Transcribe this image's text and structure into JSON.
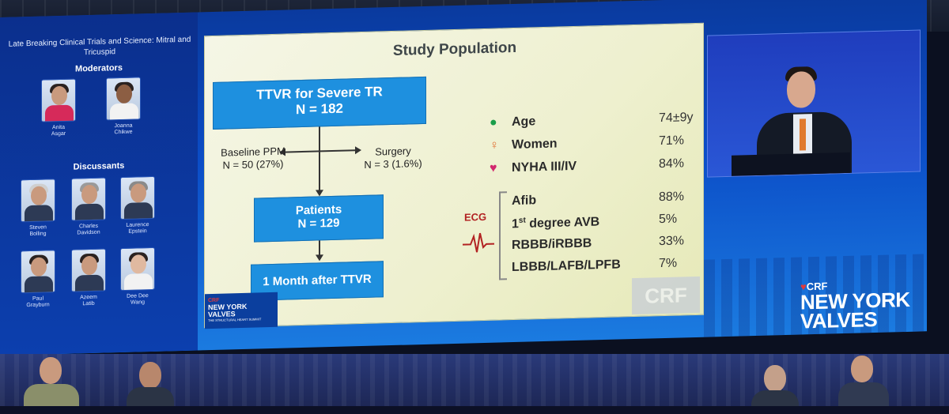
{
  "session": {
    "title": "Late Breaking Clinical Trials and Science: Mitral and Tricuspid",
    "moderators_heading": "Moderators",
    "discussants_heading": "Discussants",
    "moderators": [
      {
        "first": "Anita",
        "last": "Asgar"
      },
      {
        "first": "Joanna",
        "last": "Chikwe"
      }
    ],
    "discussants": [
      {
        "first": "Steven",
        "last": "Bolling"
      },
      {
        "first": "Charles",
        "last": "Davidson"
      },
      {
        "first": "Laurence",
        "last": "Epstein"
      },
      {
        "first": "Paul",
        "last": "Grayburn"
      },
      {
        "first": "Azeem",
        "last": "Latib"
      },
      {
        "first": "Dee Dee",
        "last": "Wang"
      }
    ]
  },
  "slide": {
    "title": "Study Population",
    "flow": {
      "top_box": {
        "line1": "TTVR for Severe TR",
        "line2": "N = 182"
      },
      "left_note": {
        "line1": "Baseline PPM",
        "line2": "N = 50 (27%)"
      },
      "right_note": {
        "line1": "Surgery",
        "line2": "N = 3 (1.6%)"
      },
      "middle_box": {
        "line1": "Patients",
        "line2": "N = 129"
      },
      "bottom_box": {
        "line1": "1 Month after TTVR"
      }
    },
    "demographics": [
      {
        "label": "Age",
        "value": "74±9y",
        "icon": "person-icon",
        "icon_glyph": "●",
        "color": "#1a9e4a"
      },
      {
        "label": "Women",
        "value": "71%",
        "icon": "female-icon",
        "icon_glyph": "♀",
        "color": "#e06a2c"
      },
      {
        "label": "NYHA III/IV",
        "value": "84%",
        "icon": "heart-person-icon",
        "icon_glyph": "♥",
        "color": "#d2286e"
      }
    ],
    "ecg_label": "ECG",
    "ecg": [
      {
        "label": "Afib",
        "value": "88%"
      },
      {
        "label_main": "1",
        "label_sup": "st",
        "label_rest": " degree AVB",
        "value": "5%"
      },
      {
        "label": "RBBB/iRBBB",
        "value": "33%"
      },
      {
        "label": "LBBB/LAFB/LPFB",
        "value": "7%"
      }
    ],
    "logo": {
      "crf": "CRF",
      "line1": "NEW YORK",
      "line2": "VALVES",
      "tagline": "THE STRUCTURAL HEART SUMMIT"
    },
    "watermark": "CRF"
  },
  "screen_logo": {
    "crf": "CRF",
    "mark": "♥",
    "line1": "NEW YORK",
    "line2": "VALVES"
  },
  "colors": {
    "flow_box": "#1e90df",
    "slide_bg": "#eef0cf",
    "screen_blue": "#0b4dc7",
    "ecg_red": "#b22222"
  }
}
